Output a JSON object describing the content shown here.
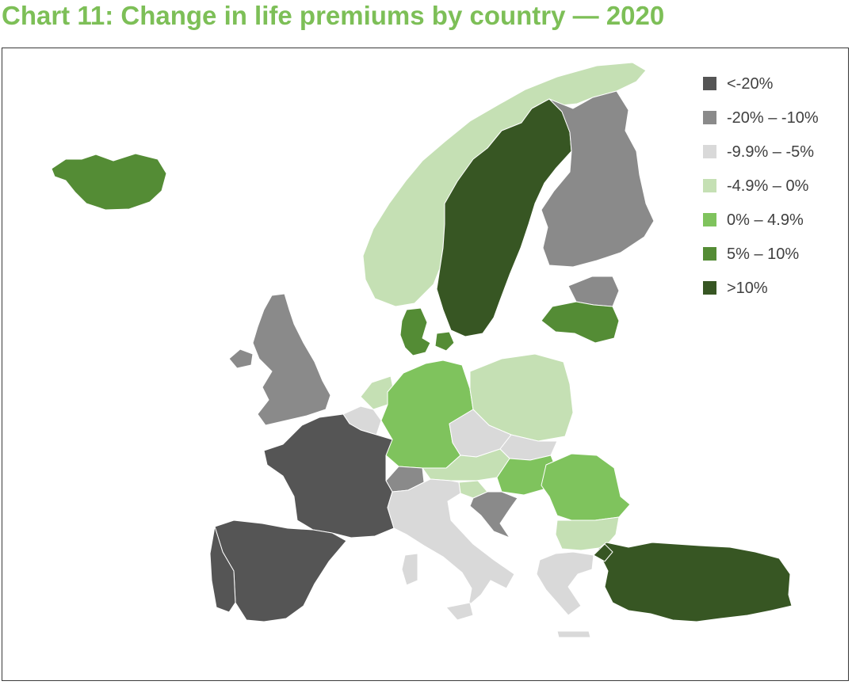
{
  "title": "Chart 11: Change in life premiums by country — 2020",
  "title_color": "#7dbf57",
  "legend": [
    {
      "label": "<-20%",
      "color": "#555555"
    },
    {
      "label": "-20% – -10%",
      "color": "#8a8a8a"
    },
    {
      "label": "-9.9% – -5%",
      "color": "#d9d9d9"
    },
    {
      "label": "-4.9% – 0%",
      "color": "#c5e0b4"
    },
    {
      "label": "0% – 4.9%",
      "color": "#7fc35d"
    },
    {
      "label": "5% – 10%",
      "color": "#548c35"
    },
    {
      "label": ">10%",
      "color": "#375623"
    }
  ],
  "countries": [
    {
      "id": "iceland",
      "band": 5
    },
    {
      "id": "norway",
      "band": 3
    },
    {
      "id": "sweden",
      "band": 6
    },
    {
      "id": "finland",
      "band": 1
    },
    {
      "id": "estonia",
      "band": 1
    },
    {
      "id": "latvia",
      "band": 5
    },
    {
      "id": "denmark",
      "band": 5
    },
    {
      "id": "united-kingdom",
      "band": 1
    },
    {
      "id": "netherlands",
      "band": 3
    },
    {
      "id": "belgium",
      "band": 2
    },
    {
      "id": "germany",
      "band": 4
    },
    {
      "id": "poland",
      "band": 3
    },
    {
      "id": "czechia",
      "band": 2
    },
    {
      "id": "slovakia",
      "band": 2
    },
    {
      "id": "austria",
      "band": 3
    },
    {
      "id": "hungary",
      "band": 4
    },
    {
      "id": "slovenia",
      "band": 3
    },
    {
      "id": "croatia",
      "band": 1
    },
    {
      "id": "switzerland",
      "band": 1
    },
    {
      "id": "france",
      "band": 0
    },
    {
      "id": "spain",
      "band": 0
    },
    {
      "id": "portugal",
      "band": 0
    },
    {
      "id": "italy",
      "band": 2
    },
    {
      "id": "romania",
      "band": 4
    },
    {
      "id": "bulgaria",
      "band": 3
    },
    {
      "id": "greece",
      "band": 2
    },
    {
      "id": "turkey",
      "band": 6
    }
  ]
}
